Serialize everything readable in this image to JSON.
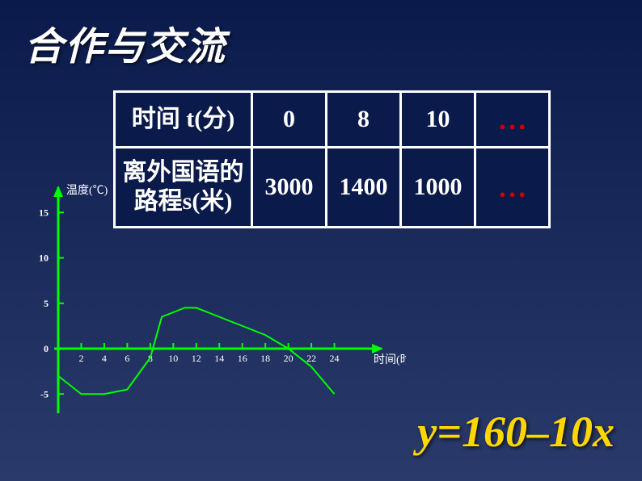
{
  "title": "合作与交流",
  "table": {
    "rows": [
      {
        "header": "时间 t(分)",
        "cells": [
          "0",
          "8",
          "10"
        ],
        "dots": "…"
      },
      {
        "header": "离外国语的路程s(米)",
        "cells": [
          "3000",
          "1400",
          "1000"
        ],
        "dots": "…"
      }
    ],
    "border_color": "#ffffff",
    "text_color": "#ffffff",
    "dots_color": "#cc0000",
    "bg_color": "#0a1a4a",
    "font_size": 30
  },
  "chart": {
    "type": "line",
    "x_label": "时间(时)",
    "y_label": "温度(℃)",
    "axis_color": "#00ff00",
    "line_color": "#00ff00",
    "tick_label_color": "#ffffff",
    "x_ticks": [
      2,
      4,
      6,
      8,
      10,
      12,
      14,
      16,
      18,
      20,
      22,
      24
    ],
    "y_ticks": [
      -5,
      0,
      5,
      10,
      15
    ],
    "ylim": [
      -6,
      16
    ],
    "xlim": [
      0,
      26
    ],
    "line_width": 2,
    "y_label_fontsize": 14,
    "x_label_fontsize": 14,
    "tick_fontsize": 12,
    "data": [
      {
        "x": 0,
        "y": -3
      },
      {
        "x": 2,
        "y": -5
      },
      {
        "x": 4,
        "y": -5
      },
      {
        "x": 6,
        "y": -4.5
      },
      {
        "x": 8,
        "y": -1
      },
      {
        "x": 9,
        "y": 3.5
      },
      {
        "x": 10,
        "y": 4
      },
      {
        "x": 11,
        "y": 4.5
      },
      {
        "x": 12,
        "y": 4.5
      },
      {
        "x": 13,
        "y": 4
      },
      {
        "x": 14,
        "y": 3.5
      },
      {
        "x": 16,
        "y": 2.5
      },
      {
        "x": 18,
        "y": 1.5
      },
      {
        "x": 20,
        "y": 0
      },
      {
        "x": 22,
        "y": -2
      },
      {
        "x": 24,
        "y": -5
      }
    ]
  },
  "formula": {
    "text_html": "<span class='var'>y</span>=160–10<span class='var'>x</span>",
    "plain": "y=160–10x",
    "color": "#ffd700",
    "font_size": 54
  },
  "background": {
    "gradient_top": "#0a1a4a",
    "gradient_bottom": "#2a3a6a"
  }
}
